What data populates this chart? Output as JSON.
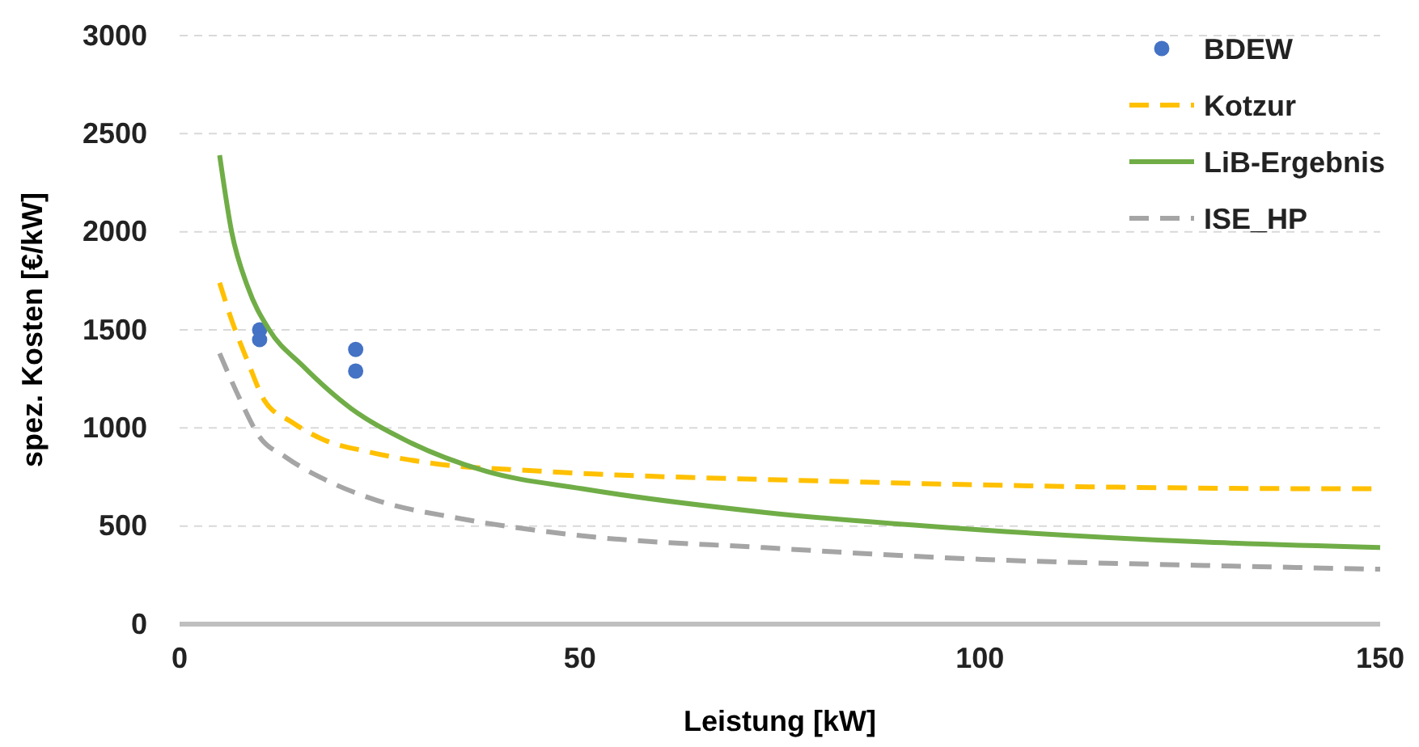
{
  "chart_data": {
    "type": "line",
    "xlabel": "Leistung [kW]",
    "ylabel": "spez. Kosten [€/kW]",
    "xlim": [
      0,
      150
    ],
    "xticks": [
      0,
      50,
      100,
      150
    ],
    "ylim": [
      0,
      3000
    ],
    "yticks": [
      0,
      500,
      1000,
      1500,
      2000,
      2500,
      3000
    ],
    "grid": "y",
    "legend": "top right",
    "series": [
      {
        "name": "BDEW",
        "type": "scatter",
        "marker": "circle",
        "color": "#4472c4",
        "x": [
          10,
          10,
          22,
          22
        ],
        "values": [
          1500,
          1450,
          1400,
          1290
        ]
      },
      {
        "name": "Kotzur",
        "line_style": "dashed",
        "color": "#ffc000",
        "x": [
          5,
          6.5,
          8.5,
          10.6,
          14,
          18,
          23.4,
          31.5,
          45,
          80,
          113.6,
          147,
          150
        ],
        "values": [
          1740,
          1550,
          1340,
          1140,
          1030,
          940,
          880,
          820,
          780,
          730,
          700,
          690,
          690
        ]
      },
      {
        "name": "LiB-Ergebnis",
        "line_style": "solid",
        "color": "#70ad47",
        "x": [
          5,
          6.5,
          8.5,
          11.2,
          15.3,
          21.4,
          28.1,
          38.2,
          50.3,
          73,
          100.2,
          127,
          150
        ],
        "values": [
          2390,
          2000,
          1720,
          1500,
          1320,
          1100,
          940,
          780,
          690,
          570,
          480,
          420,
          390
        ]
      },
      {
        "name": "ISE_HP",
        "line_style": "dashed",
        "color": "#a5a5a5",
        "x": [
          5,
          7.5,
          9.9,
          13.3,
          18,
          24.7,
          34.8,
          50.3,
          73,
          100.2,
          127,
          150
        ],
        "values": [
          1380,
          1150,
          960,
          850,
          740,
          630,
          540,
          450,
          390,
          330,
          300,
          280
        ]
      }
    ]
  }
}
